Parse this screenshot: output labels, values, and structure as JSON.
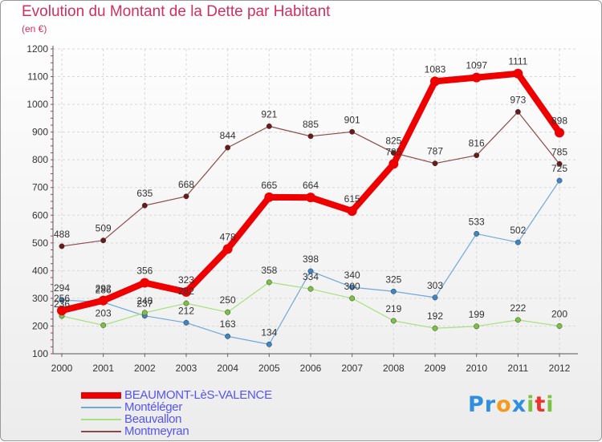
{
  "title": "Evolution du Montant de la Dette par Habitant",
  "unit": "(en €)",
  "logo": {
    "text": "Proxiti",
    "letters": [
      {
        "ch": "P",
        "color": "#2f8ee0"
      },
      {
        "ch": "r",
        "color": "#2f8ee0"
      },
      {
        "ch": "o",
        "color": "#f39b1f"
      },
      {
        "ch": "x",
        "color": "#2f8ee0"
      },
      {
        "ch": "i",
        "color": "#7cc242"
      },
      {
        "ch": "t",
        "color": "#e8352e"
      },
      {
        "ch": "i",
        "color": "#7cc242"
      }
    ]
  },
  "chart_data": {
    "type": "line",
    "title": "Evolution du Montant de la Dette par Habitant",
    "ylabel": "(en €)",
    "x": [
      2000,
      2001,
      2002,
      2003,
      2004,
      2005,
      2006,
      2007,
      2008,
      2009,
      2010,
      2011,
      2012
    ],
    "ylim": [
      100,
      1200
    ],
    "yticks": [
      100,
      200,
      300,
      400,
      500,
      600,
      700,
      800,
      900,
      1000,
      1100,
      1200
    ],
    "grid": true,
    "legend": "bottom-left",
    "series": [
      {
        "name": "BEAUMONT-LèS-VALENCE",
        "color": "#ee0000",
        "width": 8,
        "marker_color": "#ee0000",
        "values": [
          256,
          292,
          356,
          323,
          478,
          665,
          664,
          615,
          785,
          1083,
          1097,
          1111,
          898
        ]
      },
      {
        "name": "Montéléger",
        "color": "#6fa8dc",
        "width": 1.2,
        "marker_color": "#3d85c6",
        "values": [
          294,
          286,
          237,
          212,
          163,
          134,
          398,
          340,
          325,
          303,
          533,
          502,
          725
        ]
      },
      {
        "name": "Beauvallon",
        "color": "#a8e07c",
        "width": 1.2,
        "marker_color": "#7cc242",
        "values": [
          236,
          203,
          248,
          282,
          250,
          358,
          334,
          300,
          219,
          192,
          199,
          222,
          200
        ]
      },
      {
        "name": "Montmeyran",
        "color": "#8b4a4a",
        "width": 1.2,
        "marker_color": "#6b1a1a",
        "values": [
          488,
          509,
          635,
          668,
          844,
          921,
          885,
          901,
          825,
          787,
          816,
          973,
          785
        ]
      }
    ]
  }
}
